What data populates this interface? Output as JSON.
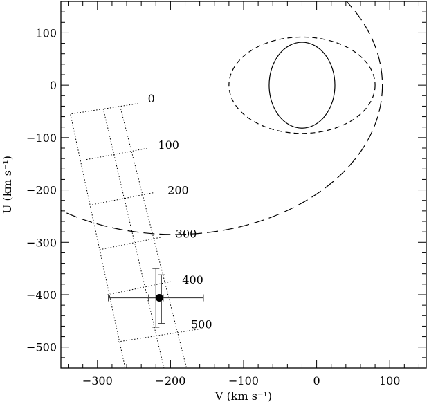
{
  "chart_data": {
    "type": "scatter",
    "title": "",
    "xlabel": "V (km s⁻¹)",
    "ylabel": "U (km s⁻¹)",
    "xlim": [
      -350,
      150
    ],
    "ylim": [
      -540,
      160
    ],
    "x_ticks": [
      -300,
      -200,
      -100,
      0,
      100
    ],
    "x_tick_labels": [
      "−300",
      "−200",
      "−100",
      "0",
      "100"
    ],
    "y_ticks": [
      100,
      0,
      -100,
      -200,
      -300,
      -400,
      -500
    ],
    "y_tick_labels": [
      "100",
      "0",
      "−100",
      "−200",
      "−300",
      "−400",
      "−500"
    ],
    "x_minor_step": 20,
    "y_minor_step": 20,
    "grid": false,
    "ellipses": [
      {
        "style": "solid",
        "center": [
          -20,
          0
        ],
        "semi_axis_v": 45,
        "semi_axis_u": 82
      },
      {
        "style": "dashed",
        "center": [
          -20,
          0
        ],
        "semi_axis_v": 100,
        "semi_axis_u": 92
      }
    ],
    "circle": {
      "style": "long-dashed",
      "center": [
        -195,
        0
      ],
      "radius": 285
    },
    "dotted_grid": {
      "corners": [
        [
          -244,
          -35
        ],
        [
          -337,
          -55
        ],
        [
          -262,
          -540
        ],
        [
          -143,
          -540
        ]
      ],
      "row_lines": [
        {
          "from": [
            -315,
            -142
          ],
          "to": [
            -230,
            -120
          ]
        },
        {
          "from": [
            -307,
            -228
          ],
          "to": [
            -222,
            -205
          ]
        },
        {
          "from": [
            -297,
            -314
          ],
          "to": [
            -212,
            -290
          ]
        },
        {
          "from": [
            -286,
            -400
          ],
          "to": [
            -200,
            -375
          ]
        },
        {
          "from": [
            -272,
            -490
          ],
          "to": [
            -158,
            -465
          ]
        }
      ],
      "column_lines": [
        {
          "from": [
            -292,
            -45
          ],
          "to": [
            -209,
            -540
          ]
        },
        {
          "from": [
            -269,
            -40
          ],
          "to": [
            -178,
            -540
          ]
        }
      ],
      "labels": [
        {
          "text": "0",
          "at": [
            -231,
            -33
          ]
        },
        {
          "text": "100",
          "at": [
            -217,
            -121
          ]
        },
        {
          "text": "200",
          "at": [
            -204,
            -208
          ]
        },
        {
          "text": "300",
          "at": [
            -193,
            -291
          ]
        },
        {
          "text": "400",
          "at": [
            -184,
            -379
          ]
        },
        {
          "text": "500",
          "at": [
            -172,
            -464
          ]
        }
      ]
    },
    "points": [
      {
        "x": -220,
        "y": -406,
        "errorbars": [
          {
            "axis": "x",
            "low": -285,
            "high": -155
          },
          {
            "axis": "x",
            "low": -230,
            "high": -210
          },
          {
            "axis": "y",
            "low": -462,
            "high": -350
          },
          {
            "axis": "y",
            "low": -455,
            "high": -362
          }
        ]
      }
    ]
  }
}
